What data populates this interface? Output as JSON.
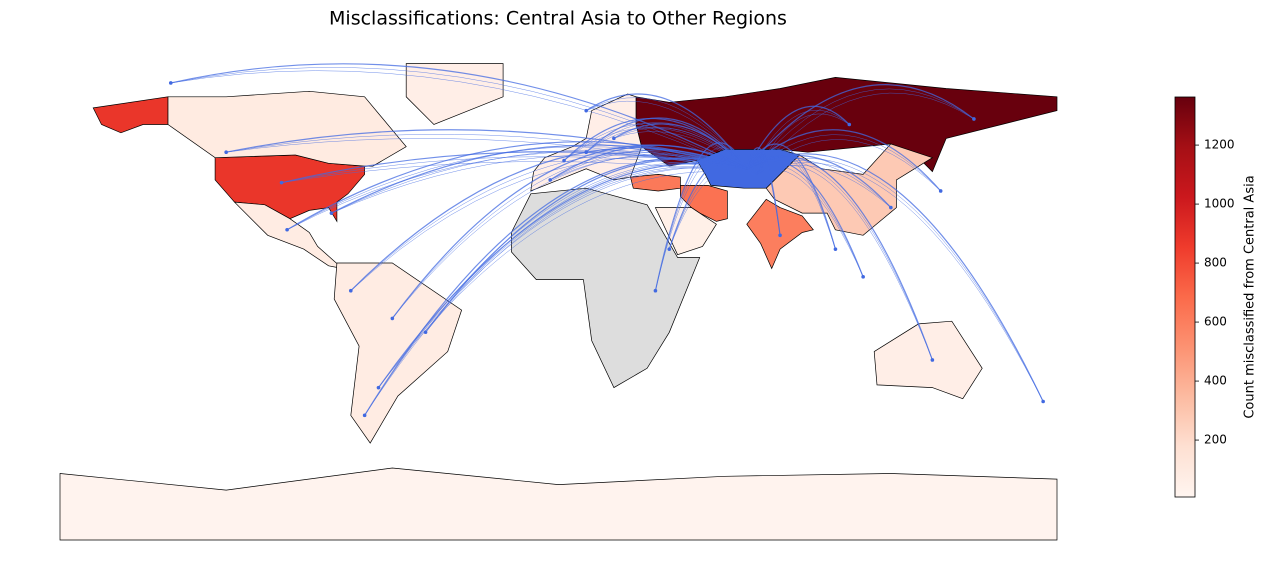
{
  "chart_data": {
    "type": "choropleth",
    "title": "Misclassifications: Central Asia to Other Regions",
    "colorbar_label": "Count misclassified from Central Asia",
    "colormap": [
      "#fff5f0",
      "#fee0d2",
      "#fcbba1",
      "#fc9272",
      "#fb6a4a",
      "#ef3b2c",
      "#cb181d",
      "#a50f15",
      "#67000d"
    ],
    "clim": [
      7,
      1363
    ],
    "cticks": [
      200,
      400,
      600,
      800,
      1000,
      1200
    ],
    "missing_color": "#dddddd",
    "origin_color": "#4169e1",
    "arc_color": "#4169e1",
    "values": [
      1360,
      880,
      880,
      90,
      60,
      280,
      620,
      650,
      600,
      60,
      80,
      80,
      null,
      50,
      60,
      20
    ]
  }
}
